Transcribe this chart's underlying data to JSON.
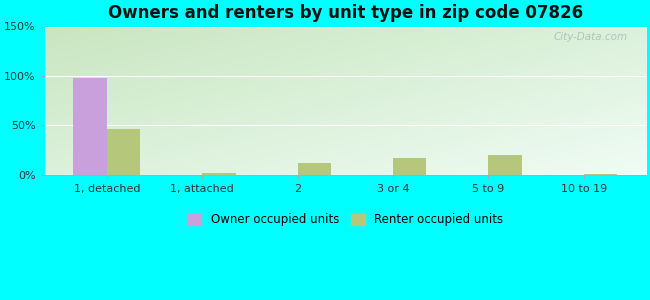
{
  "title": "Owners and renters by unit type in zip code 07826",
  "categories": [
    "1, detached",
    "1, attached",
    "2",
    "3 or 4",
    "5 to 9",
    "10 to 19"
  ],
  "owner_values": [
    98,
    0,
    0,
    0,
    0,
    0
  ],
  "renter_values": [
    46,
    2,
    12,
    17,
    20,
    1
  ],
  "owner_color": "#c9a0dc",
  "renter_color": "#b5c77a",
  "ylim": [
    0,
    150
  ],
  "yticks": [
    0,
    50,
    100,
    150
  ],
  "ytick_labels": [
    "0%",
    "50%",
    "100%",
    "150%"
  ],
  "bg_color_top_left": "#c8e6c0",
  "bg_color_bottom_right": "#f0faf8",
  "outer_bg": "#00ffff",
  "watermark": "City-Data.com",
  "title_fontsize": 12,
  "bar_width": 0.35,
  "grid_color": "#e0ede0"
}
